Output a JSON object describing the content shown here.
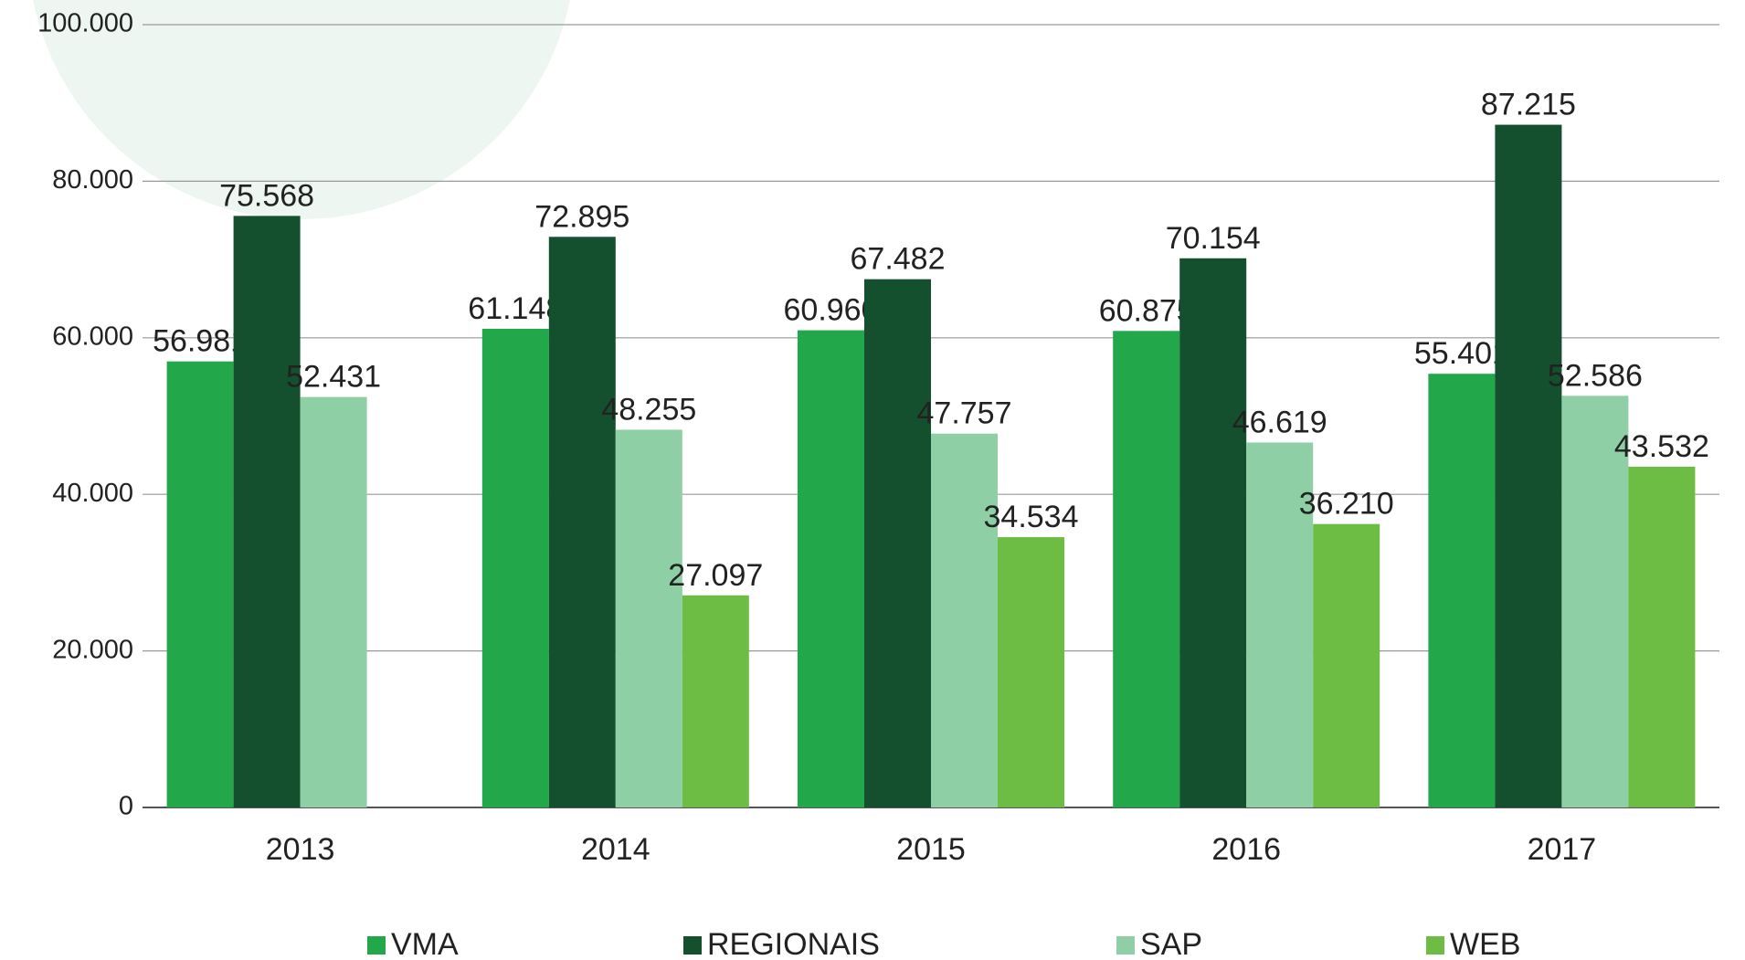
{
  "chart_data": {
    "type": "bar",
    "categories": [
      "2013",
      "2014",
      "2015",
      "2016",
      "2017"
    ],
    "series": [
      {
        "name": "VMA",
        "color": "#22a84a",
        "values": [
          56981,
          61148,
          60960,
          60875,
          55401
        ],
        "value_labels": [
          "56.981",
          "61.148",
          "60.960",
          "60.875",
          "55.401"
        ]
      },
      {
        "name": "REGIONAIS",
        "color": "#14502e",
        "values": [
          75568,
          72895,
          67482,
          70154,
          87215
        ],
        "value_labels": [
          "75.568",
          "72.895",
          "67.482",
          "70.154",
          "87.215"
        ]
      },
      {
        "name": "SAP",
        "color": "#8fcfa5",
        "values": [
          52431,
          48255,
          47757,
          46619,
          52586
        ],
        "value_labels": [
          "52.431",
          "48.255",
          "47.757",
          "46.619",
          "52.586"
        ]
      },
      {
        "name": "WEB",
        "color": "#6dbd45",
        "values": [
          null,
          27097,
          34534,
          36210,
          43532
        ],
        "value_labels": [
          null,
          "27.097",
          "34.534",
          "36.210",
          "43.532"
        ]
      }
    ],
    "ylim": [
      0,
      100000
    ],
    "yticks": [
      {
        "value": 0,
        "label": "0"
      },
      {
        "value": 20000,
        "label": "20.000"
      },
      {
        "value": 40000,
        "label": "40.000"
      },
      {
        "value": 60000,
        "label": "60.000"
      },
      {
        "value": 80000,
        "label": "80.000"
      },
      {
        "value": 100000,
        "label": "100.000"
      }
    ],
    "grid": true,
    "legend": "bottom"
  }
}
